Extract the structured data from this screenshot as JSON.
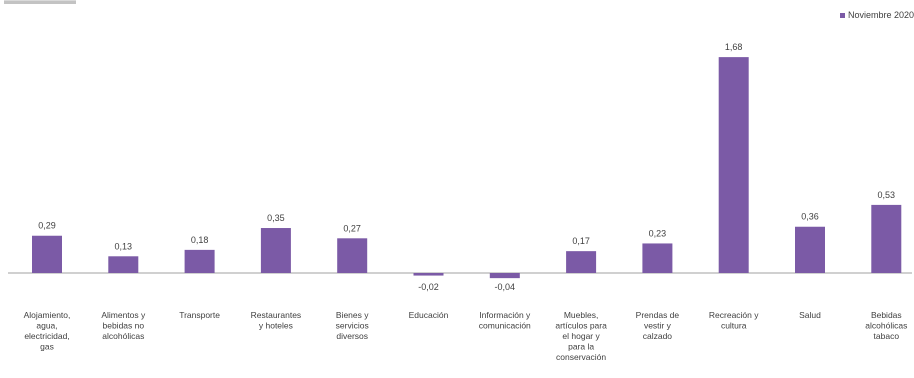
{
  "legend": {
    "label": "Noviembre 2020",
    "color": "#7b5aa6"
  },
  "colors": {
    "bar": "#7b5aa6",
    "axis": "#a0a0a0",
    "text": "#404040"
  },
  "chart_data": {
    "type": "bar",
    "categories": [
      "Alojamiento, agua, electricidad, gas",
      "Alimentos y bebidas no alcohólicas",
      "Transporte",
      "Restaurantes y hoteles",
      "Bienes y servicios diversos",
      "Educación",
      "Información y comunicación",
      "Muebles, artículos para el hogar y para la conservación",
      "Prendas de vestir y calzado",
      "Recreación y cultura",
      "Salud",
      "Bebidas alcohólicas tabaco"
    ],
    "category_lines": [
      [
        "Alojamiento,",
        "agua,",
        "electricidad,",
        "gas"
      ],
      [
        "Alimentos y",
        "bebidas no",
        "alcohólicas"
      ],
      [
        "Transporte"
      ],
      [
        "Restaurantes",
        "y hoteles"
      ],
      [
        "Bienes y",
        "servicios",
        "diversos"
      ],
      [
        "Educación"
      ],
      [
        "Información y",
        "comunicación"
      ],
      [
        "Muebles,",
        "artículos para",
        "el hogar y",
        "para la",
        "conservación"
      ],
      [
        "Prendas de",
        "vestir y",
        "calzado"
      ],
      [
        "Recreación y",
        "cultura"
      ],
      [
        "Salud"
      ],
      [
        "Bebidas",
        "alcohólicas",
        "tabaco"
      ]
    ],
    "series": [
      {
        "name": "Noviembre 2020",
        "values": [
          0.29,
          0.13,
          0.18,
          0.35,
          0.27,
          -0.02,
          -0.04,
          0.17,
          0.23,
          1.68,
          0.36,
          0.53
        ],
        "labels": [
          "0,29",
          "0,13",
          "0,18",
          "0,35",
          "0,27",
          "-0,02",
          "-0,04",
          "0,17",
          "0,23",
          "1,68",
          "0,36",
          "0,53"
        ]
      }
    ],
    "legend_position": "top-right",
    "grid": false
  }
}
